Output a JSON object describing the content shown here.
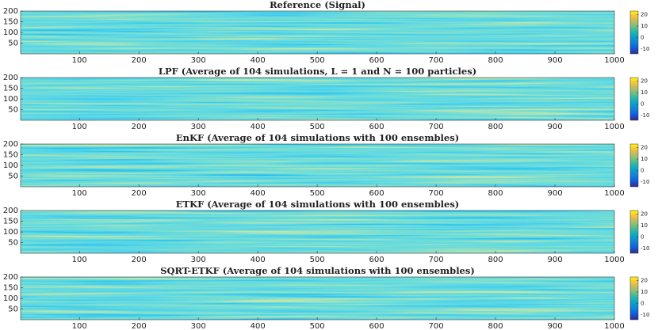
{
  "chart_data": [
    {
      "type": "heatmap",
      "title": "Reference (Signal)",
      "xlim": [
        1,
        1000
      ],
      "xticks": [
        100,
        200,
        300,
        400,
        500,
        600,
        700,
        800,
        900,
        1000
      ],
      "ylim": [
        1,
        200
      ],
      "yticks": [
        50,
        100,
        150,
        200
      ],
      "clim": [
        -14,
        23
      ],
      "cticks": [
        -10,
        0,
        10,
        20
      ]
    },
    {
      "type": "heatmap",
      "title": "LPF (Average of 104 simulations, L = 1 and N = 100 particles)",
      "xlim": [
        1,
        1000
      ],
      "xticks": [
        100,
        200,
        300,
        400,
        500,
        600,
        700,
        800,
        900,
        1000
      ],
      "ylim": [
        1,
        200
      ],
      "yticks": [
        50,
        100,
        150,
        200
      ],
      "clim": [
        -14,
        23
      ],
      "cticks": [
        -10,
        0,
        10,
        20
      ]
    },
    {
      "type": "heatmap",
      "title": "EnKF (Average of 104 simulations with 100 ensembles)",
      "xlim": [
        1,
        1000
      ],
      "xticks": [
        100,
        200,
        300,
        400,
        500,
        600,
        700,
        800,
        900,
        1000
      ],
      "ylim": [
        1,
        200
      ],
      "yticks": [
        50,
        100,
        150,
        200
      ],
      "clim": [
        -14,
        23
      ],
      "cticks": [
        -10,
        0,
        10,
        20
      ]
    },
    {
      "type": "heatmap",
      "title": "ETKF (Average of 104 simulations with 100 ensembles)",
      "xlim": [
        1,
        1000
      ],
      "xticks": [
        100,
        200,
        300,
        400,
        500,
        600,
        700,
        800,
        900,
        1000
      ],
      "ylim": [
        1,
        200
      ],
      "yticks": [
        50,
        100,
        150,
        200
      ],
      "clim": [
        -14,
        23
      ],
      "cticks": [
        -10,
        0,
        10,
        20
      ]
    },
    {
      "type": "heatmap",
      "title": "SQRT-ETKF (Average of 104 simulations with 100 ensembles)",
      "xlim": [
        1,
        1000
      ],
      "xticks": [
        100,
        200,
        300,
        400,
        500,
        600,
        700,
        800,
        900,
        1000
      ],
      "ylim": [
        1,
        200
      ],
      "yticks": [
        50,
        100,
        150,
        200
      ],
      "clim": [
        -14,
        23
      ],
      "cticks": [
        -10,
        0,
        10,
        20
      ]
    }
  ]
}
